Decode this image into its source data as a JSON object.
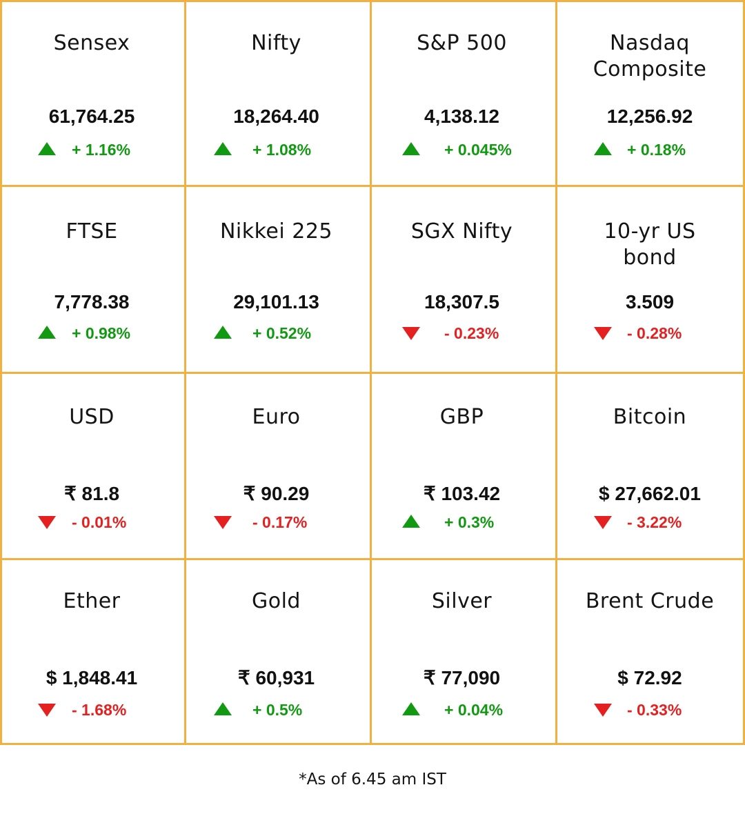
{
  "colors": {
    "border": "#f2b040",
    "up": "#129912",
    "down": "#e42020"
  },
  "tiles": [
    {
      "name": "Sensex",
      "value": "61,764.25",
      "change": "+ 1.16%",
      "direction": "up"
    },
    {
      "name": "Nifty",
      "value": "18,264.40",
      "change": "+ 1.08%",
      "direction": "up"
    },
    {
      "name": "S&P 500",
      "value": "4,138.12",
      "change": "+ 0.045%",
      "direction": "up"
    },
    {
      "name": "Nasdaq Composite",
      "value": "12,256.92",
      "change": "+ 0.18%",
      "direction": "up"
    },
    {
      "name": "FTSE",
      "value": "7,778.38",
      "change": "+ 0.98%",
      "direction": "up"
    },
    {
      "name": "Nikkei 225",
      "value": "29,101.13",
      "change": "+ 0.52%",
      "direction": "up"
    },
    {
      "name": "SGX Nifty",
      "value": "18,307.5",
      "change": "- 0.23%",
      "direction": "down"
    },
    {
      "name": "10-yr US bond",
      "value": "3.509",
      "change": "- 0.28%",
      "direction": "down"
    },
    {
      "name": "USD",
      "value": "₹ 81.8",
      "change": "- 0.01%",
      "direction": "down"
    },
    {
      "name": "Euro",
      "value": "₹ 90.29",
      "change": "- 0.17%",
      "direction": "down"
    },
    {
      "name": "GBP",
      "value": "₹ 103.42",
      "change": "+ 0.3%",
      "direction": "up"
    },
    {
      "name": "Bitcoin",
      "value": "$ 27,662.01",
      "change": "- 3.22%",
      "direction": "down"
    },
    {
      "name": "Ether",
      "value": "$ 1,848.41",
      "change": "- 1.68%",
      "direction": "down"
    },
    {
      "name": "Gold",
      "value": "₹ 60,931",
      "change": "+ 0.5%",
      "direction": "up"
    },
    {
      "name": "Silver",
      "value": "₹ 77,090",
      "change": "+ 0.04%",
      "direction": "up"
    },
    {
      "name": "Brent Crude",
      "value": "$ 72.92",
      "change": "- 0.33%",
      "direction": "down"
    }
  ],
  "footnote": "*As of 6.45 am IST"
}
